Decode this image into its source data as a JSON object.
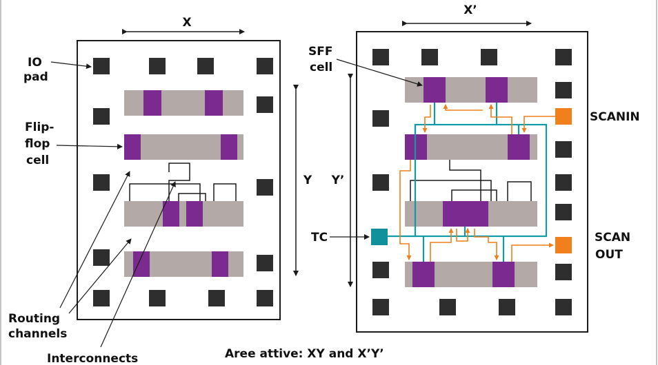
{
  "colors": {
    "border": "#1a1a1a",
    "pad": "#2e2e2e",
    "row": "#b3a9a6",
    "flipflop": "#7b2a8f",
    "scan_wire": "#0f9aa8",
    "scan_arrow": "#f07f1c",
    "scan_pad": "#f07f1c",
    "tc_pad": "#11919c",
    "interconnect": "#1a1a1a"
  },
  "left_chip": {
    "label_x": "X",
    "label_y": "Y",
    "label_io_pad": [
      "IO",
      "pad"
    ],
    "label_flipflop": [
      "Flip-",
      "flop",
      "cell"
    ],
    "label_routing": [
      "Routing",
      "channels"
    ],
    "label_interconnects": "Interconnects"
  },
  "right_chip": {
    "label_x": "X’",
    "label_y": "Y’",
    "label_sff": [
      "SFF",
      "cell"
    ],
    "label_scanin": "SCANIN",
    "label_scanout": [
      "SCAN",
      "OUT"
    ],
    "label_tc": "TC"
  },
  "caption": "Aree attive: XY and X’Y’"
}
